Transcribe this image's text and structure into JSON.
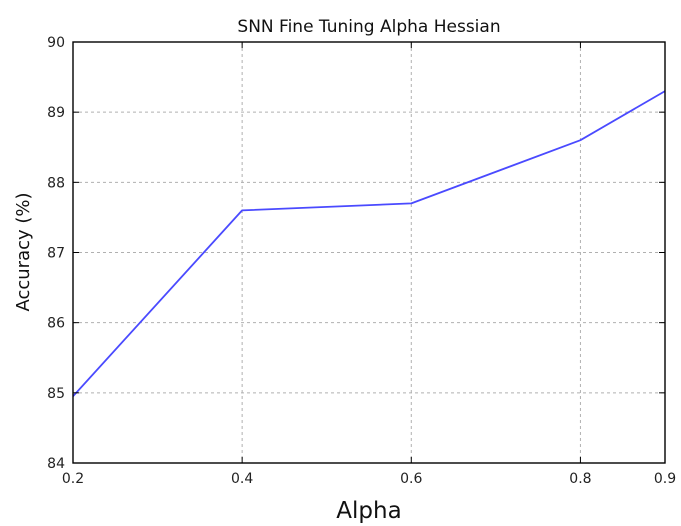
{
  "chart_data": {
    "type": "line",
    "title": "SNN Fine Tuning Alpha Hessian",
    "xlabel": "Alpha",
    "ylabel": "Accuracy (%)",
    "xlim": [
      0.2,
      0.9
    ],
    "ylim": [
      84,
      90
    ],
    "x_ticks": [
      0.2,
      0.4,
      0.6,
      0.8,
      0.9
    ],
    "x_tick_labels": [
      "0.2",
      "0.4",
      "0.6",
      "0.8",
      "0.9"
    ],
    "y_ticks": [
      84,
      85,
      86,
      87,
      88,
      89,
      90
    ],
    "y_tick_labels": [
      "84",
      "85",
      "86",
      "87",
      "88",
      "89",
      "90"
    ],
    "grid": true,
    "series": [
      {
        "color": "#4a4aff",
        "x": [
          0.2,
          0.4,
          0.6,
          0.8,
          0.9
        ],
        "y": [
          84.95,
          87.6,
          87.7,
          88.6,
          89.3
        ]
      }
    ]
  }
}
